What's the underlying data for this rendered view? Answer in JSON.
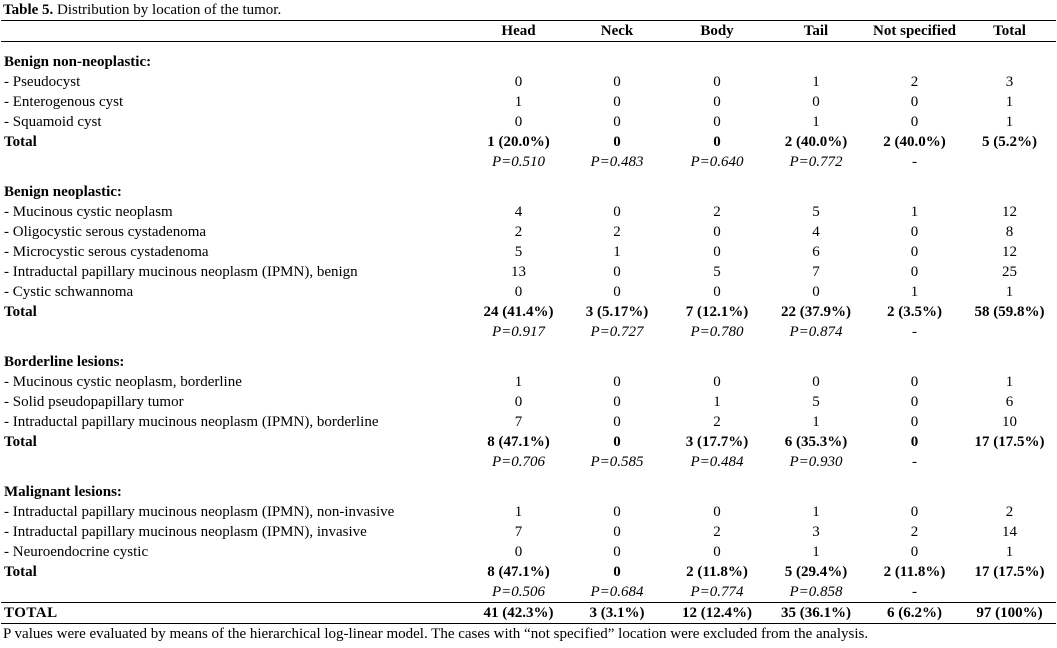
{
  "caption": {
    "label": "Table 5.",
    "text": "Distribution by location of the tumor."
  },
  "table": {
    "header": [
      "Head",
      "Neck",
      "Body",
      "Tail",
      "Not specified",
      "Total"
    ],
    "sections": [
      {
        "title": "Benign non-neoplastic:",
        "rows": [
          {
            "label": "- Pseudocyst",
            "cells": [
              0,
              0,
              0,
              1,
              2,
              3
            ]
          },
          {
            "label": "- Enterogenous cyst",
            "cells": [
              1,
              0,
              0,
              0,
              0,
              1
            ]
          },
          {
            "label": "- Squamoid cyst",
            "cells": [
              0,
              0,
              0,
              1,
              0,
              1
            ]
          }
        ],
        "total": {
          "label": "Total",
          "cells": [
            "1 (20.0%)",
            "0",
            "0",
            "2 (40.0%)",
            "2 (40.0%)",
            "5 (5.2%)"
          ]
        },
        "p_values": [
          "P=0.510",
          "P=0.483",
          "P=0.640",
          "P=0.772",
          "-"
        ]
      },
      {
        "title": "Benign neoplastic:",
        "rows": [
          {
            "label": "- Mucinous cystic neoplasm",
            "cells": [
              4,
              0,
              2,
              5,
              1,
              12
            ]
          },
          {
            "label": "- Oligocystic serous cystadenoma",
            "cells": [
              2,
              2,
              0,
              4,
              0,
              8
            ]
          },
          {
            "label": "- Microcystic serous cystadenoma",
            "cells": [
              5,
              1,
              0,
              6,
              0,
              12
            ]
          },
          {
            "label": "- Intraductal papillary mucinous neoplasm (IPMN), benign",
            "cells": [
              13,
              0,
              5,
              7,
              0,
              25
            ]
          },
          {
            "label": "- Cystic schwannoma",
            "cells": [
              0,
              0,
              0,
              0,
              1,
              1
            ]
          }
        ],
        "total": {
          "label": "Total",
          "cells": [
            "24 (41.4%)",
            "3 (5.17%)",
            "7 (12.1%)",
            "22 (37.9%)",
            "2 (3.5%)",
            "58 (59.8%)"
          ]
        },
        "p_values": [
          "P=0.917",
          "P=0.727",
          "P=0.780",
          "P=0.874",
          "-"
        ]
      },
      {
        "title": "Borderline lesions:",
        "rows": [
          {
            "label": "- Mucinous cystic neoplasm, borderline",
            "cells": [
              1,
              0,
              0,
              0,
              0,
              1
            ]
          },
          {
            "label": "- Solid pseudopapillary tumor",
            "cells": [
              0,
              0,
              1,
              5,
              0,
              6
            ]
          },
          {
            "label": "- Intraductal papillary mucinous neoplasm (IPMN), borderline",
            "cells": [
              7,
              0,
              2,
              1,
              0,
              10
            ]
          }
        ],
        "total": {
          "label": "Total",
          "cells": [
            "8 (47.1%)",
            "0",
            "3 (17.7%)",
            "6 (35.3%)",
            "0",
            "17 (17.5%)"
          ]
        },
        "p_values": [
          "P=0.706",
          "P=0.585",
          "P=0.484",
          "P=0.930",
          "-"
        ]
      },
      {
        "title": "Malignant lesions:",
        "rows": [
          {
            "label": "- Intraductal papillary mucinous neoplasm (IPMN), non-invasive",
            "cells": [
              1,
              0,
              0,
              1,
              0,
              2
            ]
          },
          {
            "label": "- Intraductal papillary mucinous neoplasm (IPMN), invasive",
            "cells": [
              7,
              0,
              2,
              3,
              2,
              14
            ]
          },
          {
            "label": "- Neuroendocrine cystic",
            "cells": [
              0,
              0,
              0,
              1,
              0,
              1
            ]
          }
        ],
        "total": {
          "label": "Total",
          "cells": [
            "8 (47.1%)",
            "0",
            "2 (11.8%)",
            "5 (29.4%)",
            "2 (11.8%)",
            "17 (17.5%)"
          ]
        },
        "p_values": [
          "P=0.506",
          "P=0.684",
          "P=0.774",
          "P=0.858",
          "-"
        ]
      }
    ],
    "grand_total": {
      "label": "TOTAL",
      "cells": [
        "41 (42.3%)",
        "3 (3.1%)",
        "12 (12.4%)",
        "35 (36.1%)",
        "6 (6.2%)",
        "97 (100%)"
      ]
    }
  },
  "footnote": "P values were evaluated by means of the hierarchical log-linear model. The cases with “not specified” location were excluded from the analysis."
}
